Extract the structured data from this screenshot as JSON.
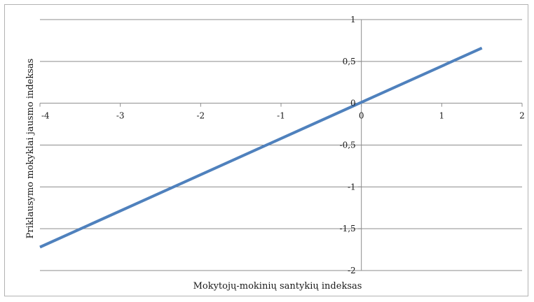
{
  "chart_data": {
    "type": "line",
    "title": "",
    "xlabel": "Mokytojų-mokinių santykių indeksas",
    "ylabel": "Priklausymo mokyklai jausmo indeksas",
    "xlim": [
      -4,
      2
    ],
    "ylim": [
      -2,
      1
    ],
    "x_ticks": [
      -4,
      -3,
      -2,
      -1,
      0,
      1,
      2
    ],
    "x_tick_labels": [
      "-4",
      "-3",
      "-2",
      "-1",
      "0",
      "1",
      "2"
    ],
    "y_ticks": [
      1,
      0.5,
      0,
      -0.5,
      -1,
      -1.5,
      -2
    ],
    "y_tick_labels": [
      "1",
      "0,5",
      "0",
      "-0,5",
      "-1",
      "-1,5",
      "-2"
    ],
    "grid": true,
    "legend": "none",
    "series": [
      {
        "color": "#4f81bd",
        "x": [
          -4.0,
          1.5
        ],
        "y": [
          -1.72,
          0.66
        ]
      }
    ]
  }
}
